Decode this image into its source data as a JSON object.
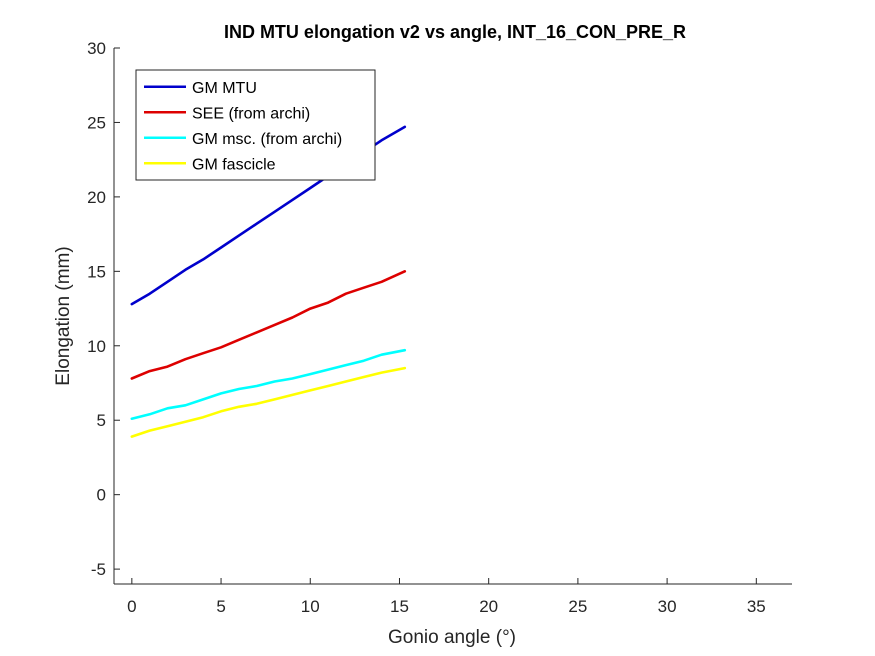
{
  "chart_data": {
    "type": "line",
    "title": "IND MTU elongation v2 vs angle, INT_16_CON_PRE_R",
    "xlabel": "Gonio angle (°)",
    "ylabel": "Elongation (mm)",
    "xlim": [
      -1,
      37
    ],
    "ylim": [
      -6,
      30
    ],
    "xticks": [
      0,
      5,
      10,
      15,
      20,
      25,
      30,
      35
    ],
    "yticks": [
      -5,
      0,
      5,
      10,
      15,
      20,
      25,
      30
    ],
    "grid": false,
    "legend_position": "top-left",
    "series": [
      {
        "name": "GM MTU",
        "color": "#0000cc",
        "x": [
          0,
          1,
          2,
          3,
          4,
          5,
          6,
          7,
          8,
          9,
          10,
          11,
          12,
          13,
          14,
          15.3
        ],
        "y": [
          12.8,
          13.5,
          14.3,
          15.1,
          15.8,
          16.6,
          17.4,
          18.2,
          19.0,
          19.8,
          20.6,
          21.4,
          22.2,
          23.0,
          23.8,
          24.7
        ]
      },
      {
        "name": "SEE (from archi)",
        "color": "#dd0000",
        "x": [
          0,
          1,
          2,
          3,
          4,
          5,
          6,
          7,
          8,
          9,
          10,
          11,
          12,
          13,
          14,
          15.3
        ],
        "y": [
          7.8,
          8.3,
          8.6,
          9.1,
          9.5,
          9.9,
          10.4,
          10.9,
          11.4,
          11.9,
          12.5,
          12.9,
          13.5,
          13.9,
          14.3,
          15.0
        ]
      },
      {
        "name": "GM msc. (from archi)",
        "color": "#00ffff",
        "x": [
          0,
          1,
          2,
          3,
          4,
          5,
          6,
          7,
          8,
          9,
          10,
          11,
          12,
          13,
          14,
          15.3
        ],
        "y": [
          5.1,
          5.4,
          5.8,
          6.0,
          6.4,
          6.8,
          7.1,
          7.3,
          7.6,
          7.8,
          8.1,
          8.4,
          8.7,
          9.0,
          9.4,
          9.7
        ]
      },
      {
        "name": "GM fascicle",
        "color": "#ffff00",
        "x": [
          0,
          1,
          2,
          3,
          4,
          5,
          6,
          7,
          8,
          9,
          10,
          11,
          12,
          13,
          14,
          15.3
        ],
        "y": [
          3.9,
          4.3,
          4.6,
          4.9,
          5.2,
          5.6,
          5.9,
          6.1,
          6.4,
          6.7,
          7.0,
          7.3,
          7.6,
          7.9,
          8.2,
          8.5
        ]
      }
    ]
  }
}
